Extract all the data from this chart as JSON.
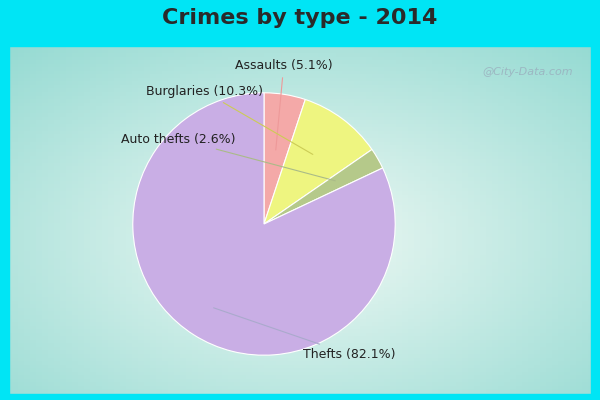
{
  "title": "Crimes by type - 2014",
  "slices": [
    {
      "label": "Thefts",
      "pct": 82.1,
      "color": "#c9aee5"
    },
    {
      "label": "Assaults",
      "pct": 5.1,
      "color": "#f4a9a8"
    },
    {
      "label": "Burglaries",
      "pct": 10.3,
      "color": "#eef580"
    },
    {
      "label": "Auto thefts",
      "pct": 2.6,
      "color": "#b5c98a"
    }
  ],
  "background_top": "#00e5f5",
  "background_main_top": "#b8dfd8",
  "background_main_bottom": "#d8eed8",
  "title_fontsize": 16,
  "label_fontsize": 9,
  "watermark": "@City-Data.com",
  "title_color": "#2a2a2a",
  "label_color": "#222222"
}
